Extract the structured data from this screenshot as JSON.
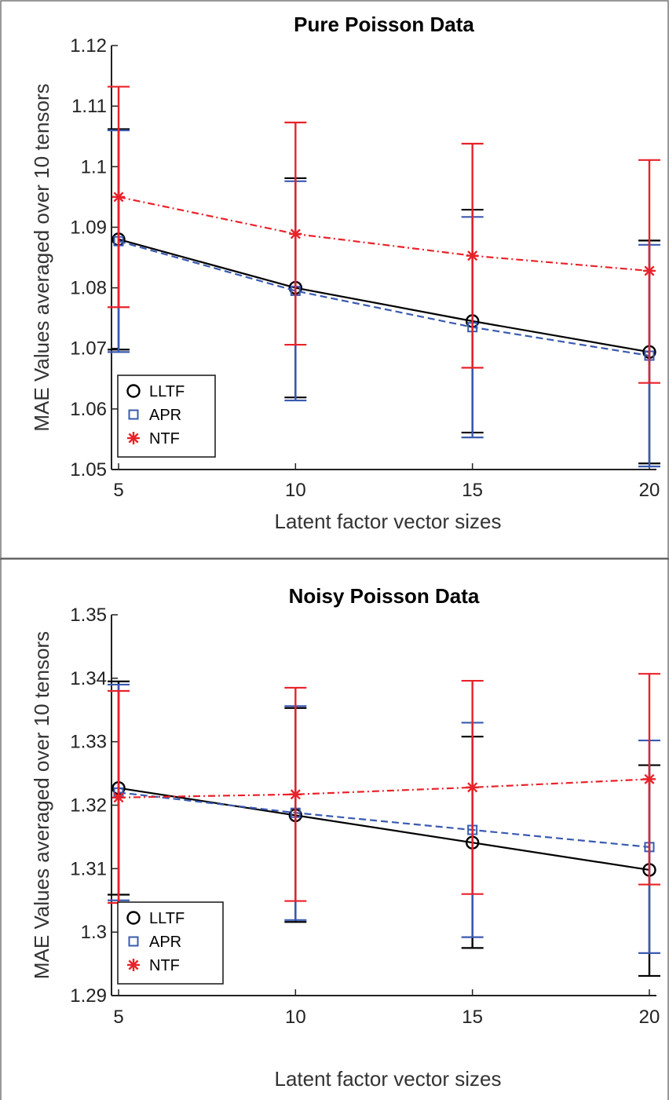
{
  "chart_data": [
    {
      "type": "line",
      "title": "Pure Poisson Data",
      "xlabel": "Latent factor vector sizes",
      "ylabel": "MAE Values averaged over 10 tensors",
      "x": [
        5,
        10,
        15,
        20
      ],
      "xlim": [
        4.8,
        20.2
      ],
      "ylim": [
        1.05,
        1.12
      ],
      "xticks": [
        "5",
        "10",
        "15",
        "20"
      ],
      "yticks": [
        "1.05",
        "1.06",
        "1.07",
        "1.08",
        "1.09",
        "1.1",
        "1.11",
        "1.12"
      ],
      "grid": false,
      "legend_position": "bottom-left",
      "series": [
        {
          "name": "LLTF",
          "marker": "circle",
          "line_style": "solid",
          "color": "#000000",
          "values": [
            1.088,
            1.08,
            1.0745,
            1.0694
          ],
          "error_low": [
            1.0698,
            1.0619,
            1.0561,
            1.051
          ],
          "error_high": [
            1.1062,
            1.0981,
            1.0929,
            1.0878
          ]
        },
        {
          "name": "APR",
          "marker": "square",
          "line_style": "dashed",
          "color": "#3a5ab0",
          "values": [
            1.0877,
            1.0795,
            1.0735,
            1.0688
          ],
          "error_low": [
            1.0694,
            1.0614,
            1.0553,
            1.0505
          ],
          "error_high": [
            1.106,
            1.0976,
            1.0917,
            1.0871
          ]
        },
        {
          "name": "NTF",
          "marker": "asterisk",
          "line_style": "dashdot",
          "color": "#e8222a",
          "values": [
            1.095,
            1.0889,
            1.0853,
            1.0828
          ],
          "error_low": [
            1.0768,
            1.0706,
            1.0668,
            1.0643
          ],
          "error_high": [
            1.1132,
            1.1073,
            1.1038,
            1.1011
          ]
        }
      ]
    },
    {
      "type": "line",
      "title": "Noisy Poisson Data",
      "xlabel": "Latent factor vector sizes",
      "ylabel": "MAE Values averaged over 10 tensors",
      "x": [
        5,
        10,
        15,
        20
      ],
      "xlim": [
        4.8,
        20.2
      ],
      "ylim": [
        1.29,
        1.35
      ],
      "xticks": [
        "5",
        "10",
        "15",
        "20"
      ],
      "yticks": [
        "1.29",
        "1.3",
        "1.31",
        "1.32",
        "1.33",
        "1.34",
        "1.35"
      ],
      "grid": false,
      "legend_position": "bottom-left",
      "series": [
        {
          "name": "LLTF",
          "marker": "circle",
          "line_style": "solid",
          "color": "#000000",
          "values": [
            1.3227,
            1.3184,
            1.3141,
            1.3098
          ],
          "error_low": [
            1.3059,
            1.3016,
            1.2975,
            1.2931
          ],
          "error_high": [
            1.3395,
            1.3353,
            1.3308,
            1.3263
          ]
        },
        {
          "name": "APR",
          "marker": "square",
          "line_style": "dashed",
          "color": "#3a5ab0",
          "values": [
            1.322,
            1.3188,
            1.3161,
            1.3134
          ],
          "error_low": [
            1.305,
            1.3019,
            1.2992,
            1.2967
          ],
          "error_high": [
            1.339,
            1.3356,
            1.333,
            1.3302
          ]
        },
        {
          "name": "NTF",
          "marker": "asterisk",
          "line_style": "dashdot",
          "color": "#e8222a",
          "values": [
            1.3212,
            1.3217,
            1.3228,
            1.3241
          ],
          "error_low": [
            1.3046,
            1.3049,
            1.306,
            1.3075
          ],
          "error_high": [
            1.338,
            1.3385,
            1.3396,
            1.3407
          ]
        }
      ]
    }
  ]
}
